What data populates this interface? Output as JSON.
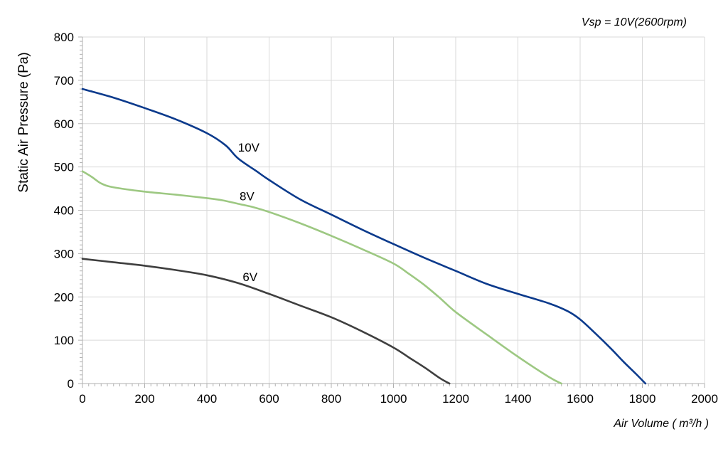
{
  "chart_data": {
    "type": "line",
    "annotation": "Vsp = 10V(2600rpm)",
    "xlabel": "Air Volume ( m³/h )",
    "ylabel": "Static Air Pressure  (Pa)",
    "xlim": [
      0,
      2000
    ],
    "ylim": [
      0,
      800
    ],
    "xticks": [
      0,
      200,
      400,
      600,
      800,
      1000,
      1200,
      1400,
      1600,
      1800,
      2000
    ],
    "yticks": [
      0,
      100,
      200,
      300,
      400,
      500,
      600,
      700,
      800
    ],
    "grid": true,
    "series": [
      {
        "name": "10V",
        "color": "#0b3a8c",
        "label_at": [
          500,
          545
        ],
        "points": [
          [
            0,
            680
          ],
          [
            100,
            660
          ],
          [
            200,
            636
          ],
          [
            300,
            610
          ],
          [
            400,
            578
          ],
          [
            460,
            550
          ],
          [
            500,
            520
          ],
          [
            560,
            490
          ],
          [
            600,
            470
          ],
          [
            700,
            425
          ],
          [
            800,
            390
          ],
          [
            900,
            355
          ],
          [
            1000,
            322
          ],
          [
            1100,
            290
          ],
          [
            1200,
            260
          ],
          [
            1300,
            230
          ],
          [
            1400,
            207
          ],
          [
            1500,
            185
          ],
          [
            1560,
            167
          ],
          [
            1600,
            148
          ],
          [
            1650,
            115
          ],
          [
            1700,
            80
          ],
          [
            1740,
            50
          ],
          [
            1780,
            22
          ],
          [
            1810,
            0
          ]
        ]
      },
      {
        "name": "8V",
        "color": "#9dc882",
        "label_at": [
          505,
          433
        ],
        "points": [
          [
            0,
            490
          ],
          [
            30,
            477
          ],
          [
            60,
            462
          ],
          [
            100,
            453
          ],
          [
            200,
            443
          ],
          [
            300,
            436
          ],
          [
            400,
            428
          ],
          [
            450,
            423
          ],
          [
            500,
            415
          ],
          [
            550,
            407
          ],
          [
            600,
            396
          ],
          [
            700,
            370
          ],
          [
            800,
            341
          ],
          [
            900,
            310
          ],
          [
            1000,
            277
          ],
          [
            1050,
            253
          ],
          [
            1100,
            227
          ],
          [
            1150,
            197
          ],
          [
            1200,
            165
          ],
          [
            1300,
            113
          ],
          [
            1400,
            62
          ],
          [
            1500,
            15
          ],
          [
            1540,
            0
          ]
        ]
      },
      {
        "name": "6V",
        "color": "#3f3f3f",
        "label_at": [
          515,
          246
        ],
        "points": [
          [
            0,
            288
          ],
          [
            100,
            280
          ],
          [
            200,
            272
          ],
          [
            300,
            262
          ],
          [
            400,
            250
          ],
          [
            500,
            232
          ],
          [
            600,
            207
          ],
          [
            700,
            180
          ],
          [
            800,
            153
          ],
          [
            900,
            120
          ],
          [
            1000,
            83
          ],
          [
            1050,
            60
          ],
          [
            1100,
            37
          ],
          [
            1150,
            12
          ],
          [
            1180,
            0
          ]
        ]
      }
    ]
  }
}
